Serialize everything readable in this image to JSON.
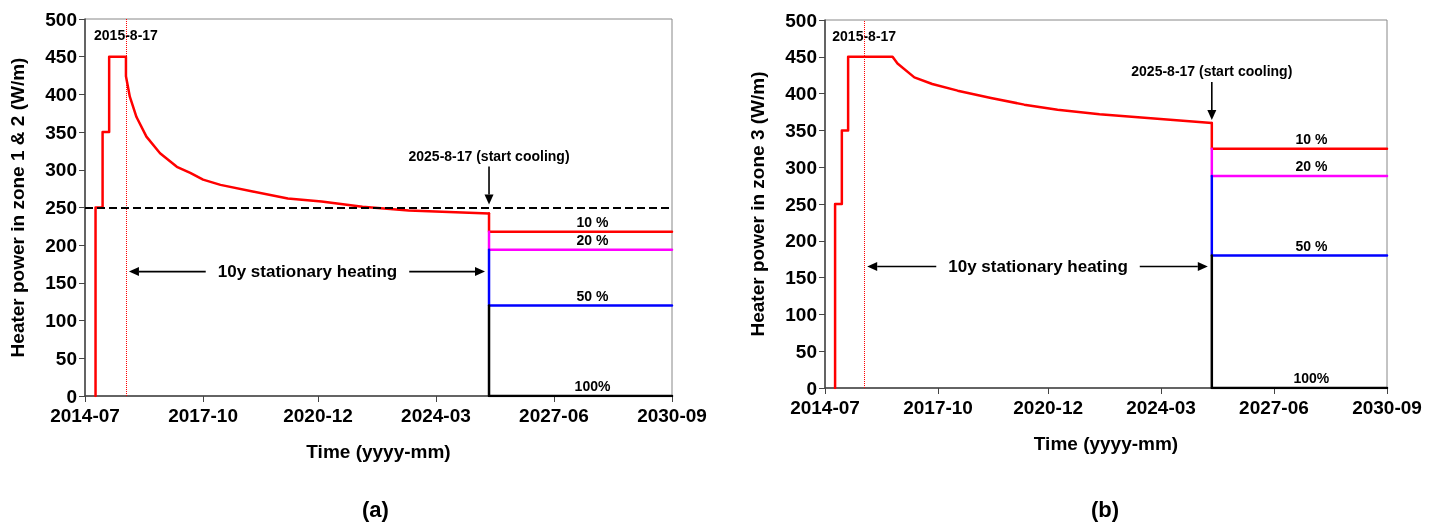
{
  "chart_data": [
    {
      "type": "line",
      "title": "(a)",
      "xlabel": "Time (yyyy-mm)",
      "ylabel": "Heater power in zone 1 & 2 (W/m)",
      "xlim": [
        "2014-07",
        "2030-09"
      ],
      "xticks": [
        "2014-07",
        "2017-10",
        "2020-12",
        "2024-03",
        "2027-06",
        "2030-09"
      ],
      "ylim": [
        0,
        500
      ],
      "yticks": [
        0,
        50,
        100,
        150,
        200,
        250,
        300,
        350,
        400,
        450,
        500
      ],
      "grid": false,
      "legend": false,
      "marker": "none",
      "line_style": "solid",
      "series": [
        {
          "color": "#ff0000",
          "x": [
            "2014-10-15",
            "2014-10-15",
            "2014-12-25",
            "2014-12-25",
            "2015-03-01",
            "2015-03-01",
            "2015-08-17",
            "2015-08-17",
            "2015-09-25",
            "2015-12-01",
            "2016-03-10",
            "2016-07-25",
            "2017-01-10",
            "2017-05-25",
            "2017-10-01",
            "2018-03-25",
            "2019-02-25",
            "2020-02-01",
            "2021-01-05",
            "2022-02-20",
            "2023-06-01",
            "2025-08-17"
          ],
          "values": [
            0,
            250,
            250,
            350,
            350,
            450,
            450,
            424,
            397,
            370,
            344,
            322,
            304,
            296,
            287,
            280,
            271,
            262,
            258,
            251,
            246,
            242
          ]
        },
        {
          "name": "10 %",
          "color": "#ff0000",
          "x": [
            "2025-08-17",
            "2025-08-17",
            "2030-09"
          ],
          "values": [
            242,
            218,
            218
          ]
        },
        {
          "name": "20 %",
          "color": "#ff00ff",
          "x": [
            "2025-08-17",
            "2025-08-17",
            "2030-09"
          ],
          "values": [
            218,
            194,
            194
          ]
        },
        {
          "name": "50 %",
          "color": "#0000ff",
          "x": [
            "2025-08-17",
            "2025-08-17",
            "2030-09"
          ],
          "values": [
            194,
            120,
            120
          ]
        },
        {
          "name": "100%",
          "color": "#000000",
          "x": [
            "2025-08-17",
            "2025-08-17",
            "2030-09"
          ],
          "values": [
            120,
            0,
            0
          ]
        }
      ],
      "ref_lines": [
        {
          "axis": "x",
          "value": "2015-08-17",
          "label": "2015-8-17",
          "color": "#ff0000",
          "line_style": "dotted"
        },
        {
          "axis": "y",
          "value": 250,
          "color": "#000000",
          "line_style": "dashed"
        }
      ],
      "annotations": [
        "2025-8-17 (start cooling)",
        "10y stationary heating"
      ]
    },
    {
      "type": "line",
      "title": "(b)",
      "xlabel": "Time (yyyy-mm)",
      "ylabel": "Heater power in zone 3 (W/m)",
      "xlim": [
        "2014-07",
        "2030-09"
      ],
      "xticks": [
        "2014-07",
        "2017-10",
        "2020-12",
        "2024-03",
        "2027-06",
        "2030-09"
      ],
      "ylim": [
        0,
        500
      ],
      "yticks": [
        0,
        50,
        100,
        150,
        200,
        250,
        300,
        350,
        400,
        450,
        500
      ],
      "grid": false,
      "legend": false,
      "marker": "none",
      "line_style": "solid",
      "series": [
        {
          "color": "#ff0000",
          "x": [
            "2014-10-15",
            "2014-10-15",
            "2014-12-25",
            "2014-12-25",
            "2015-03-01",
            "2015-03-01",
            "2016-06-10",
            "2016-08-01",
            "2017-01-25",
            "2017-08-01",
            "2018-04-25",
            "2019-04-10",
            "2020-03-25",
            "2021-03-10",
            "2022-05-25",
            "2025-08-17"
          ],
          "values": [
            0,
            250,
            250,
            350,
            350,
            450,
            450,
            441,
            422,
            413,
            404,
            394,
            385,
            378,
            372,
            360
          ]
        },
        {
          "name": "10 %",
          "color": "#ff0000",
          "x": [
            "2025-08-17",
            "2025-08-17",
            "2030-09"
          ],
          "values": [
            360,
            325,
            325
          ]
        },
        {
          "name": "20 %",
          "color": "#ff00ff",
          "x": [
            "2025-08-17",
            "2025-08-17",
            "2030-09"
          ],
          "values": [
            325,
            288,
            288
          ]
        },
        {
          "name": "50 %",
          "color": "#0000ff",
          "x": [
            "2025-08-17",
            "2025-08-17",
            "2030-09"
          ],
          "values": [
            288,
            180,
            180
          ]
        },
        {
          "name": "100%",
          "color": "#000000",
          "x": [
            "2025-08-17",
            "2025-08-17",
            "2030-09"
          ],
          "values": [
            180,
            0,
            0
          ]
        }
      ],
      "ref_lines": [
        {
          "axis": "x",
          "value": "2015-08-17",
          "label": "2015-8-17",
          "color": "#ff0000",
          "line_style": "dotted"
        }
      ],
      "annotations": [
        "2025-8-17 (start cooling)",
        "10y stationary heating"
      ]
    }
  ]
}
